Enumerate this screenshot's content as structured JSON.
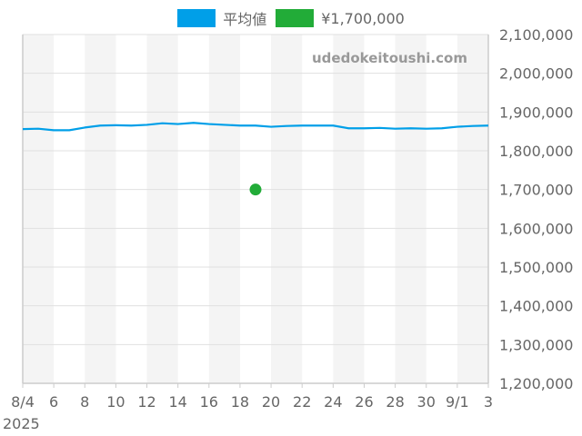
{
  "legend": [
    {
      "label": "平均値",
      "color": "#009fe8"
    },
    {
      "label": "¥1,700,000",
      "color": "#22ac38"
    }
  ],
  "watermark": "udedokeitoushi.com",
  "chart_data": {
    "type": "line",
    "title": "",
    "xlabel": "",
    "ylabel": "",
    "ylim": [
      1200000,
      2100000
    ],
    "y_ticks": [
      "2,100,000",
      "2,000,000",
      "1,900,000",
      "1,800,000",
      "1,700,000",
      "1,600,000",
      "1,500,000",
      "1,400,000",
      "1,300,000",
      "1,200,000"
    ],
    "x_ticks": [
      "8/4",
      "6",
      "8",
      "10",
      "12",
      "14",
      "16",
      "18",
      "20",
      "22",
      "24",
      "26",
      "28",
      "30",
      "9/1",
      "3"
    ],
    "x_sub_label": "2025",
    "grid": true,
    "legend_position": "top",
    "x": [
      "8/4",
      "8/5",
      "8/6",
      "8/7",
      "8/8",
      "8/9",
      "8/10",
      "8/11",
      "8/12",
      "8/13",
      "8/14",
      "8/15",
      "8/16",
      "8/17",
      "8/18",
      "8/19",
      "8/20",
      "8/21",
      "8/22",
      "8/23",
      "8/24",
      "8/25",
      "8/26",
      "8/27",
      "8/28",
      "8/29",
      "8/30",
      "8/31",
      "9/1",
      "9/2",
      "9/3"
    ],
    "series": [
      {
        "name": "平均値",
        "type": "line",
        "color": "#009fe8",
        "values": [
          1856000,
          1857000,
          1853000,
          1853000,
          1860000,
          1865000,
          1866000,
          1865000,
          1867000,
          1871000,
          1869000,
          1872000,
          1869000,
          1867000,
          1865000,
          1865000,
          1862000,
          1864000,
          1865000,
          1865000,
          1865000,
          1858000,
          1858000,
          1859000,
          1857000,
          1858000,
          1857000,
          1858000,
          1862000,
          1864000,
          1865000
        ]
      },
      {
        "name": "¥1,700,000",
        "type": "scatter",
        "color": "#22ac38",
        "points": [
          {
            "x": "8/19",
            "y": 1700000
          }
        ]
      }
    ]
  }
}
